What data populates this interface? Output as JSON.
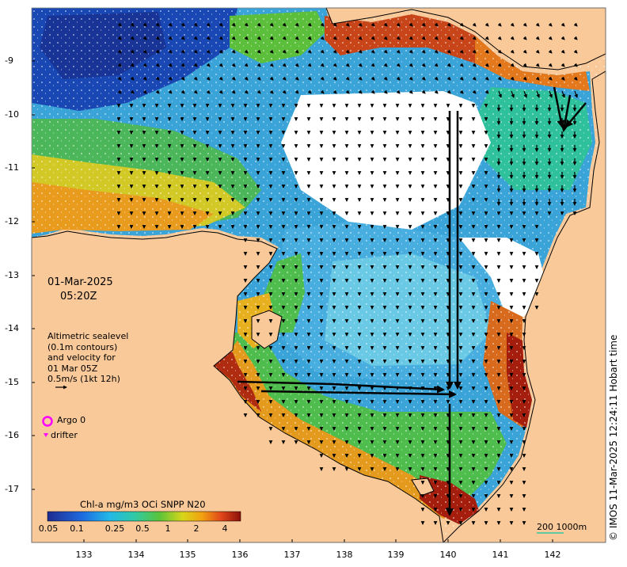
{
  "map": {
    "date": "01-Mar-2025",
    "time": "05:20Z",
    "lon_ticks": [
      "133",
      "134",
      "135",
      "136",
      "137",
      "138",
      "139",
      "140",
      "141",
      "142"
    ],
    "lat_ticks": [
      "-9",
      "-10",
      "-11",
      "-12",
      "-13",
      "-14",
      "-15",
      "-16",
      "-17"
    ],
    "legend_lines": [
      "Altimetric sealevel",
      "(0.1m contours)",
      "and velocity for",
      "01 Mar 05Z",
      "0.5m/s (1kt 12h)"
    ],
    "argo_label": "Argo 0",
    "drifter_label": "drifter",
    "colorbar": {
      "title": "Chl-a mg/m3 OCi SNPP N20",
      "ticks": [
        "0.05",
        "0.1",
        "0.25",
        "0.5",
        "1",
        "2",
        "4"
      ]
    },
    "credit": "© IMOS 11-Mar-2025 12:24:11 Hobart time",
    "scale_label": "200  1000m",
    "colors": {
      "land": "#f9c999",
      "argo": "#ff00ff",
      "low_chl": "#1a56c4",
      "high_chl": "#a51d0c"
    }
  }
}
